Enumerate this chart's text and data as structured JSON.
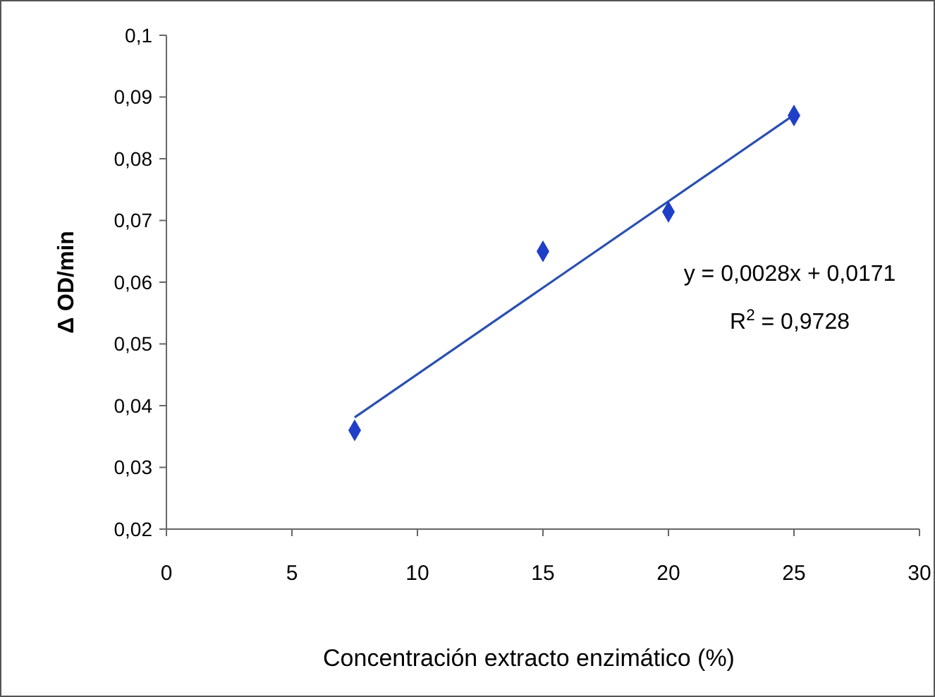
{
  "chart_data": {
    "type": "scatter",
    "xlabel": "Concentración extracto enzimático (%)",
    "ylabel": "Δ OD/min",
    "xlim": [
      0,
      30
    ],
    "xticks": [
      0,
      5,
      10,
      15,
      20,
      25,
      30
    ],
    "ylim": [
      0.02,
      0.1
    ],
    "yticks": [
      {
        "value": 0.02,
        "label": "0,02"
      },
      {
        "value": 0.03,
        "label": "0,03"
      },
      {
        "value": 0.04,
        "label": "0,04"
      },
      {
        "value": 0.05,
        "label": "0,05"
      },
      {
        "value": 0.06,
        "label": "0,06"
      },
      {
        "value": 0.07,
        "label": "0,07"
      },
      {
        "value": 0.08,
        "label": "0,08"
      },
      {
        "value": 0.09,
        "label": "0,09"
      },
      {
        "value": 0.1,
        "label": "0,1"
      }
    ],
    "grid": false,
    "series": [
      {
        "marker": "diamond",
        "color": "#1f3fc8",
        "x": [
          7.5,
          15,
          20,
          25
        ],
        "values": [
          0.036,
          0.065,
          0.0714,
          0.087
        ]
      },
      {
        "type": "line",
        "color": "#2a4fb0",
        "x": [
          7.5,
          25
        ],
        "values": [
          0.0381,
          0.0871
        ]
      }
    ],
    "annotations": [
      "y = 0,0028x + 0,0171",
      "R$^{2}$ = 0,9728"
    ]
  }
}
